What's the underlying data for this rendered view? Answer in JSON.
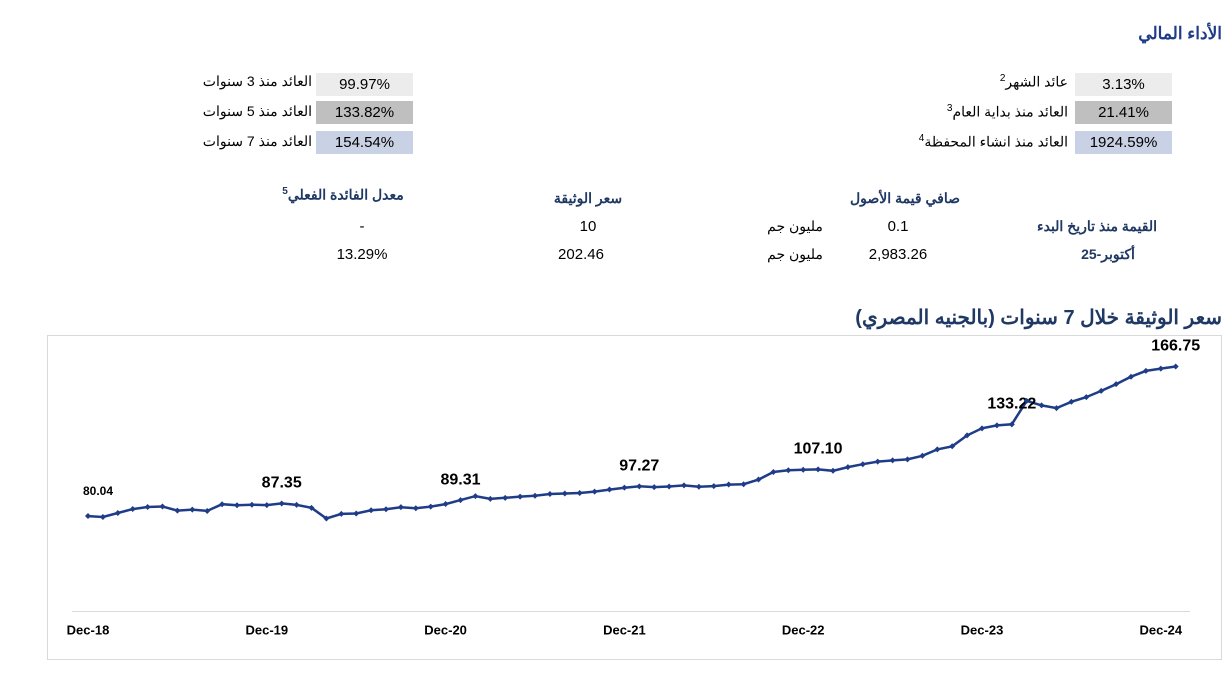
{
  "header": {
    "title": "الأداء المالي"
  },
  "returns": {
    "right": [
      {
        "label": "عائد الشهر",
        "sup": "2",
        "value": "3.13%"
      },
      {
        "label": "العائد منذ بداية العام",
        "sup": "3",
        "value": "21.41%"
      },
      {
        "label": "العائد منذ انشاء المحفظة",
        "sup": "4",
        "value": "1924.59%"
      }
    ],
    "left": [
      {
        "label": "العائد منذ 3 سنوات",
        "value": "99.97%"
      },
      {
        "label": "العائد منذ 5 سنوات",
        "value": "133.82%"
      },
      {
        "label": "العائد منذ 7 سنوات",
        "value": "154.54%"
      }
    ]
  },
  "info": {
    "headers": {
      "nav": "صافي قيمة الأصول",
      "price": "سعر الوثيقة",
      "rate": "معدل الفائدة الفعلي",
      "rate_sup": "5"
    },
    "rows": [
      {
        "label": "القيمة منذ تاريخ البدء",
        "unit": "مليون جم",
        "nav": "0.1",
        "price": "10",
        "rate": "-"
      },
      {
        "label": "أكتوبر-25",
        "unit": "مليون جم",
        "nav": "2,983.26",
        "price": "202.46",
        "rate": "13.29%"
      }
    ]
  },
  "chart_data": {
    "type": "line",
    "title": "سعر الوثيقة خلال 7 سنوات (بالجنيه المصري)",
    "color": "#1f3c88",
    "categories": [
      "Dec-18",
      null,
      null,
      null,
      null,
      null,
      null,
      null,
      null,
      null,
      null,
      null,
      "Dec-19",
      null,
      null,
      null,
      null,
      null,
      null,
      null,
      null,
      null,
      null,
      null,
      "Dec-20",
      null,
      null,
      null,
      null,
      null,
      null,
      null,
      null,
      null,
      null,
      null,
      "Dec-21",
      null,
      null,
      null,
      null,
      null,
      null,
      null,
      null,
      null,
      null,
      null,
      "Dec-22",
      null,
      null,
      null,
      null,
      null,
      null,
      null,
      null,
      null,
      null,
      null,
      "Dec-23",
      null,
      null,
      null,
      null,
      null,
      null,
      null,
      null,
      null,
      null,
      null,
      "Dec-24",
      null
    ],
    "values": [
      80.04,
      79.5,
      81.8,
      84.1,
      85.3,
      85.6,
      83.2,
      83.8,
      83.0,
      86.9,
      86.3,
      86.6,
      86.4,
      87.35,
      86.5,
      84.8,
      78.6,
      81.3,
      81.5,
      83.4,
      84.0,
      85.2,
      84.6,
      85.5,
      87.0,
      89.31,
      91.6,
      90.0,
      90.6,
      91.3,
      91.8,
      92.8,
      93.1,
      93.4,
      94.2,
      95.4,
      96.5,
      97.27,
      96.8,
      97.2,
      97.8,
      97.0,
      97.4,
      98.3,
      98.5,
      101.2,
      105.6,
      106.6,
      106.9,
      107.1,
      106.3,
      108.4,
      110.1,
      111.6,
      112.3,
      112.9,
      115.0,
      118.7,
      120.5,
      126.8,
      130.9,
      132.6,
      133.22,
      146.8,
      144.2,
      142.6,
      146.3,
      149.0,
      152.6,
      156.5,
      160.8,
      164.2,
      165.5,
      166.75
    ],
    "value_labels": [
      "80.04",
      null,
      null,
      null,
      null,
      null,
      null,
      null,
      null,
      null,
      null,
      null,
      null,
      "87.35",
      null,
      null,
      null,
      null,
      null,
      null,
      null,
      null,
      null,
      null,
      null,
      "89.31",
      null,
      null,
      null,
      null,
      null,
      null,
      null,
      null,
      null,
      null,
      null,
      "97.27",
      null,
      null,
      null,
      null,
      null,
      null,
      null,
      null,
      null,
      null,
      null,
      "107.10",
      null,
      null,
      null,
      null,
      null,
      null,
      null,
      null,
      null,
      null,
      null,
      null,
      "133.22",
      null,
      null,
      null,
      null,
      null,
      null,
      null,
      null,
      null,
      null,
      "166.75"
    ],
    "ylim": [
      25,
      185
    ]
  }
}
